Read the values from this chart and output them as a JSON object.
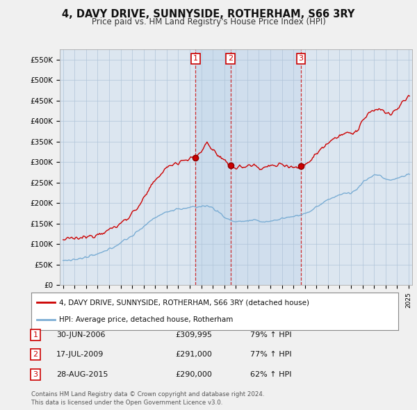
{
  "title": "4, DAVY DRIVE, SUNNYSIDE, ROTHERHAM, S66 3RY",
  "subtitle": "Price paid vs. HM Land Registry's House Price Index (HPI)",
  "red_label": "4, DAVY DRIVE, SUNNYSIDE, ROTHERHAM, S66 3RY (detached house)",
  "blue_label": "HPI: Average price, detached house, Rotherham",
  "transactions": [
    {
      "num": 1,
      "date": "30-JUN-2006",
      "price": 309995,
      "pct": "79% ↑ HPI",
      "x_year": 2006.5
    },
    {
      "num": 2,
      "date": "17-JUL-2009",
      "price": 291000,
      "pct": "77% ↑ HPI",
      "x_year": 2009.54
    },
    {
      "num": 3,
      "date": "28-AUG-2015",
      "price": 290000,
      "pct": "62% ↑ HPI",
      "x_year": 2015.65
    }
  ],
  "footer1": "Contains HM Land Registry data © Crown copyright and database right 2024.",
  "footer2": "This data is licensed under the Open Government Licence v3.0.",
  "ylim": [
    0,
    575000
  ],
  "yticks": [
    0,
    50000,
    100000,
    150000,
    200000,
    250000,
    300000,
    350000,
    400000,
    450000,
    500000,
    550000
  ],
  "ytick_labels": [
    "£0",
    "£50K",
    "£100K",
    "£150K",
    "£200K",
    "£250K",
    "£300K",
    "£350K",
    "£400K",
    "£450K",
    "£500K",
    "£550K"
  ],
  "xlim_start": 1994.7,
  "xlim_end": 2025.3,
  "bg_color": "#f0f0f0",
  "plot_bg": "#dce6f0",
  "red_color": "#cc0000",
  "blue_color": "#7aadd4",
  "shade_color": "#c5d8eb"
}
